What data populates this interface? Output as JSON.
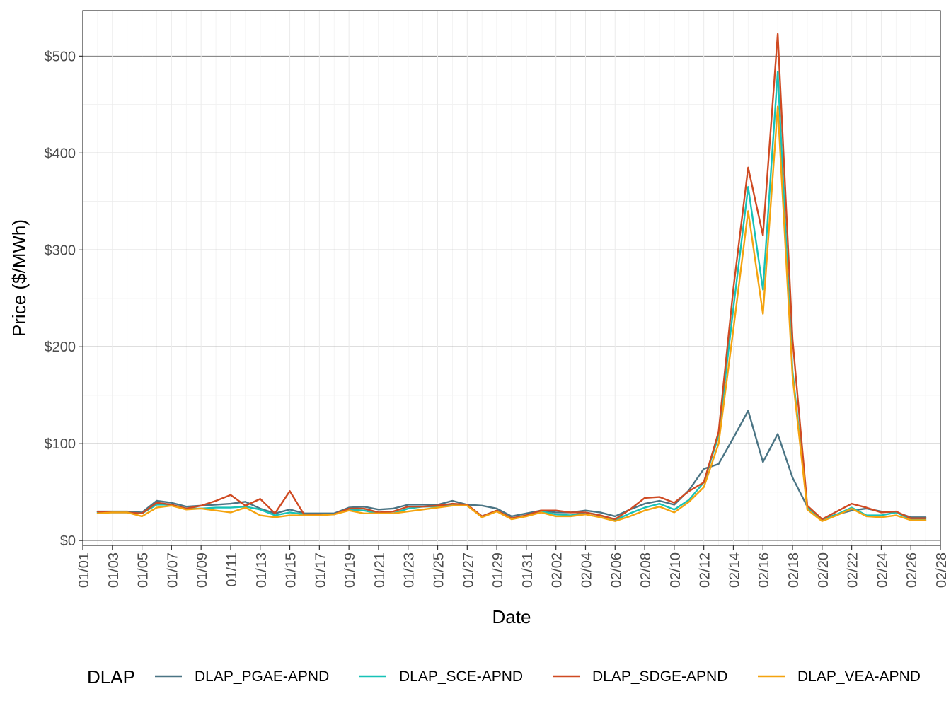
{
  "chart_data": {
    "type": "line",
    "xlabel": "Date",
    "ylabel": "Price ($/MWh)",
    "x_axis": {
      "min": "01/01",
      "max": "02/28",
      "tick_labels": [
        "01/01",
        "01/03",
        "01/05",
        "01/07",
        "01/09",
        "01/11",
        "01/13",
        "01/15",
        "01/17",
        "01/19",
        "01/21",
        "01/23",
        "01/25",
        "01/27",
        "01/29",
        "01/31",
        "02/02",
        "02/04",
        "02/06",
        "02/08",
        "02/10",
        "02/12",
        "02/14",
        "02/16",
        "02/18",
        "02/20",
        "02/22",
        "02/24",
        "02/26",
        "02/28"
      ]
    },
    "y_axis": {
      "min": -5,
      "max": 547,
      "ticks": [
        0,
        100,
        200,
        300,
        400,
        500
      ],
      "tick_labels": [
        "$0",
        "$100",
        "$200",
        "$300",
        "$400",
        "$500"
      ]
    },
    "grid": true,
    "legend": {
      "title": "DLAP",
      "position": "bottom"
    },
    "x": [
      "01/02",
      "01/03",
      "01/04",
      "01/05",
      "01/06",
      "01/07",
      "01/08",
      "01/09",
      "01/10",
      "01/11",
      "01/12",
      "01/13",
      "01/14",
      "01/15",
      "01/16",
      "01/17",
      "01/18",
      "01/19",
      "01/20",
      "01/21",
      "01/22",
      "01/23",
      "01/24",
      "01/25",
      "01/26",
      "01/27",
      "01/28",
      "01/29",
      "01/30",
      "01/31",
      "02/01",
      "02/02",
      "02/03",
      "02/04",
      "02/05",
      "02/06",
      "02/07",
      "02/08",
      "02/09",
      "02/10",
      "02/11",
      "02/12",
      "02/13",
      "02/14",
      "02/15",
      "02/16",
      "02/17",
      "02/18",
      "02/19",
      "02/20",
      "02/21",
      "02/22",
      "02/23",
      "02/24",
      "02/25",
      "02/26",
      "02/27"
    ],
    "series": [
      {
        "name": "DLAP_PGAE-APND",
        "color": "#4a7484",
        "values": [
          30,
          30,
          30,
          29,
          41,
          39,
          35,
          36,
          37,
          38,
          40,
          33,
          28,
          32,
          28,
          28,
          28,
          34,
          35,
          32,
          33,
          37,
          37,
          37,
          41,
          37,
          36,
          33,
          25,
          28,
          31,
          29,
          29,
          31,
          29,
          25,
          32,
          38,
          41,
          37,
          52,
          74,
          79,
          106,
          134,
          81,
          110,
          65,
          35,
          22,
          27,
          31,
          33,
          30,
          29,
          24,
          24
        ]
      },
      {
        "name": "DLAP_SCE-APND",
        "color": "#17c2b7",
        "values": [
          29,
          29,
          29,
          28,
          37,
          37,
          33,
          33,
          34,
          34,
          35,
          32,
          26,
          29,
          27,
          27,
          27,
          32,
          31,
          28,
          28,
          33,
          35,
          35,
          37,
          36,
          25,
          31,
          23,
          26,
          30,
          27,
          26,
          29,
          26,
          21,
          28,
          34,
          38,
          32,
          42,
          60,
          108,
          240,
          365,
          259,
          484,
          175,
          34,
          21,
          27,
          34,
          26,
          26,
          29,
          22,
          22
        ]
      },
      {
        "name": "DLAP_SDGE-APND",
        "color": "#cf4a22",
        "values": [
          30,
          29,
          29,
          28,
          39,
          37,
          33,
          36,
          41,
          47,
          36,
          43,
          28,
          51,
          26,
          27,
          27,
          33,
          33,
          29,
          30,
          35,
          35,
          36,
          38,
          37,
          25,
          31,
          23,
          26,
          31,
          31,
          29,
          29,
          26,
          22,
          32,
          44,
          45,
          39,
          51,
          60,
          112,
          260,
          385,
          315,
          523,
          208,
          36,
          22,
          30,
          38,
          34,
          29,
          30,
          23,
          23
        ]
      },
      {
        "name": "DLAP_VEA-APND",
        "color": "#f4a30f",
        "values": [
          28,
          29,
          29,
          25,
          34,
          36,
          32,
          33,
          31,
          29,
          34,
          26,
          24,
          26,
          26,
          26,
          27,
          31,
          28,
          28,
          28,
          30,
          32,
          34,
          36,
          36,
          24,
          30,
          22,
          25,
          29,
          25,
          25,
          27,
          24,
          20,
          25,
          31,
          35,
          29,
          40,
          55,
          100,
          218,
          340,
          234,
          448,
          170,
          32,
          20,
          26,
          33,
          25,
          24,
          26,
          21,
          21
        ]
      }
    ]
  }
}
